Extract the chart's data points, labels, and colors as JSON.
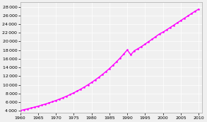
{
  "title": "",
  "xlabel": "",
  "ylabel": "",
  "line_color": "#ff00ff",
  "line_width": 1.0,
  "marker": ".",
  "marker_size": 1.8,
  "background_color": "#f0f0f0",
  "grid_color": "#ffffff",
  "xlim": [
    1960,
    2011
  ],
  "ylim": [
    3500,
    29000
  ],
  "xticks": [
    1960,
    1965,
    1970,
    1975,
    1980,
    1985,
    1990,
    1995,
    2000,
    2005,
    2010
  ],
  "yticks": [
    4000,
    6000,
    8000,
    10000,
    12000,
    14000,
    16000,
    18000,
    20000,
    22000,
    24000,
    26000,
    28000
  ],
  "years": [
    1960,
    1961,
    1962,
    1963,
    1964,
    1965,
    1966,
    1967,
    1968,
    1969,
    1970,
    1971,
    1972,
    1973,
    1974,
    1975,
    1976,
    1977,
    1978,
    1979,
    1980,
    1981,
    1982,
    1983,
    1984,
    1985,
    1986,
    1987,
    1988,
    1989,
    1990,
    1991,
    1992,
    1993,
    1994,
    1995,
    1996,
    1997,
    1998,
    1999,
    2000,
    2001,
    2002,
    2003,
    2004,
    2005,
    2006,
    2007,
    2008,
    2009,
    2010
  ],
  "population": [
    4075,
    4256,
    4446,
    4646,
    4856,
    5078,
    5313,
    5561,
    5823,
    6101,
    6395,
    6708,
    7039,
    7390,
    7762,
    8158,
    8580,
    9031,
    9509,
    10016,
    10553,
    11122,
    11724,
    12363,
    13040,
    13758,
    14519,
    15327,
    16183,
    17088,
    18044,
    16948,
    17865,
    18340,
    18836,
    19394,
    19982,
    20535,
    21135,
    21732,
    22146,
    22672,
    23208,
    23750,
    24293,
    24830,
    25366,
    25890,
    26440,
    26980,
    27448
  ]
}
